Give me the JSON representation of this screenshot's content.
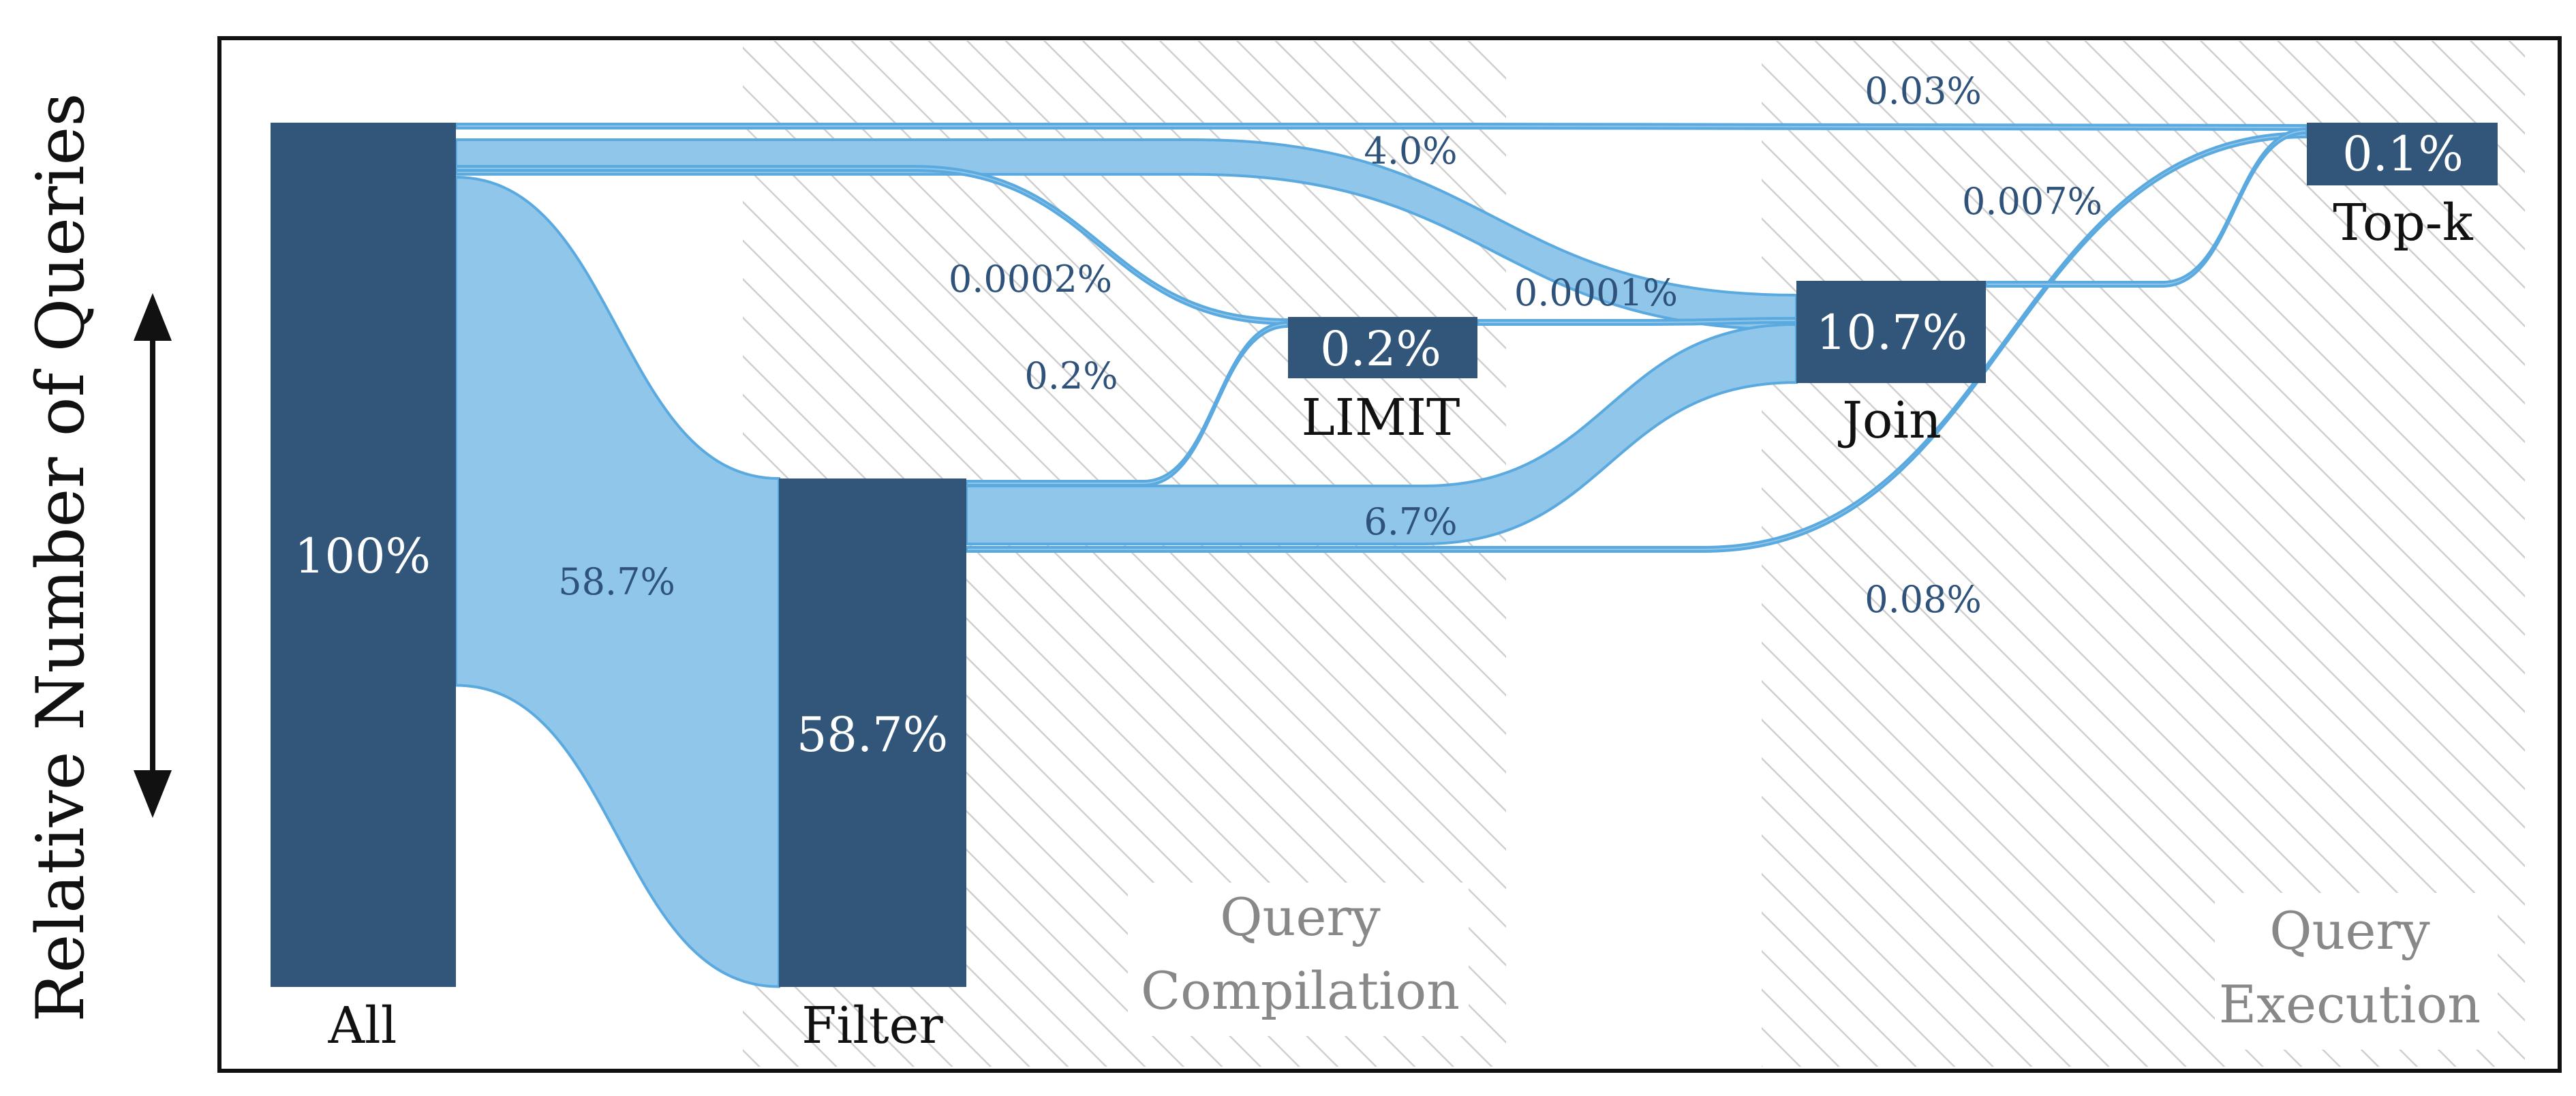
{
  "colors": {
    "node": "#32567a",
    "flow_fill": "#8fc6ea",
    "flow_stroke": "#5aa9df",
    "flow_label": "#2e527a",
    "region_label": "#888888",
    "hatch": "#cfcfcf",
    "frame": "#111111"
  },
  "axis_title": "Relative Number of Queries",
  "regions": [
    {
      "id": "compilation",
      "label_line1": "Query",
      "label_line2": "Compilation"
    },
    {
      "id": "execution",
      "label_line1": "Query",
      "label_line2": "Execution"
    }
  ],
  "chart_data": {
    "type": "sankey",
    "unit": "% of queries",
    "nodes": [
      {
        "id": "all",
        "name": "All",
        "value": 100,
        "value_label": "100%"
      },
      {
        "id": "filter",
        "name": "Filter",
        "value": 58.7,
        "value_label": "58.7%"
      },
      {
        "id": "limit",
        "name": "LIMIT",
        "value": 0.2,
        "value_label": "0.2%"
      },
      {
        "id": "join",
        "name": "Join",
        "value": 10.7,
        "value_label": "10.7%"
      },
      {
        "id": "topk",
        "name": "Top-k",
        "value": 0.1,
        "value_label": "0.1%"
      }
    ],
    "links": [
      {
        "source": "all",
        "target": "filter",
        "value": 58.7,
        "label": "58.7%"
      },
      {
        "source": "all",
        "target": "join",
        "value": 4.0,
        "label": "4.0%"
      },
      {
        "source": "all",
        "target": "topk",
        "value": 0.03,
        "label": "0.03%"
      },
      {
        "source": "all",
        "target": "limit",
        "value": 0.0002,
        "label": "0.0002%"
      },
      {
        "source": "filter",
        "target": "limit",
        "value": 0.2,
        "label": "0.2%"
      },
      {
        "source": "filter",
        "target": "join",
        "value": 6.7,
        "label": "6.7%"
      },
      {
        "source": "filter",
        "target": "topk",
        "value": 0.08,
        "label": "0.08%"
      },
      {
        "source": "limit",
        "target": "join",
        "value": 0.0001,
        "label": "0.0001%"
      },
      {
        "source": "join",
        "target": "topk",
        "value": 0.007,
        "label": "0.007%"
      }
    ]
  }
}
